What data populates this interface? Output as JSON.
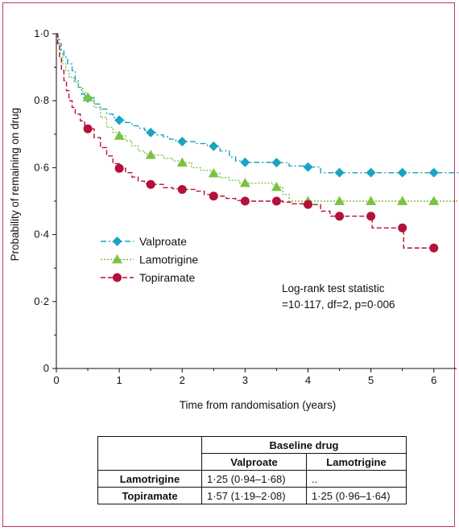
{
  "chart_data": {
    "type": "line",
    "step": true,
    "xlabel": "Time from randomisation (years)",
    "ylabel": "Probability of remaining on drug",
    "xlim": [
      0,
      6.4
    ],
    "ylim": [
      0,
      1.0
    ],
    "x_ticks": [
      0,
      1,
      2,
      3,
      4,
      5,
      6
    ],
    "y_ticks": [
      0,
      0.2,
      0.4,
      0.6,
      0.8,
      1.0
    ],
    "x_tick_labels": [
      "0",
      "1",
      "2",
      "3",
      "4",
      "5",
      "6"
    ],
    "y_tick_labels": [
      "0",
      "0·2",
      "0·4",
      "0·6",
      "0·8",
      "1·0"
    ],
    "grid": false,
    "legend_position": "left-center",
    "series": [
      {
        "name": "Valproate",
        "color": "#1aa3c2",
        "marker": "diamond",
        "dash": "dash-dot",
        "steps": [
          [
            0,
            1.0
          ],
          [
            0.02,
            0.99
          ],
          [
            0.05,
            0.97
          ],
          [
            0.08,
            0.95
          ],
          [
            0.12,
            0.93
          ],
          [
            0.18,
            0.91
          ],
          [
            0.25,
            0.89
          ],
          [
            0.3,
            0.86
          ],
          [
            0.35,
            0.84
          ],
          [
            0.4,
            0.82
          ],
          [
            0.45,
            0.815
          ],
          [
            0.5,
            0.808
          ],
          [
            0.6,
            0.79
          ],
          [
            0.7,
            0.775
          ],
          [
            0.8,
            0.76
          ],
          [
            0.9,
            0.75
          ],
          [
            1.0,
            0.742
          ],
          [
            1.1,
            0.735
          ],
          [
            1.2,
            0.725
          ],
          [
            1.3,
            0.718
          ],
          [
            1.4,
            0.712
          ],
          [
            1.5,
            0.705
          ],
          [
            1.6,
            0.698
          ],
          [
            1.7,
            0.692
          ],
          [
            1.8,
            0.685
          ],
          [
            1.9,
            0.68
          ],
          [
            2.0,
            0.678
          ],
          [
            2.2,
            0.672
          ],
          [
            2.4,
            0.666
          ],
          [
            2.5,
            0.664
          ],
          [
            2.6,
            0.65
          ],
          [
            2.75,
            0.632
          ],
          [
            2.85,
            0.62
          ],
          [
            2.95,
            0.616
          ],
          [
            3.5,
            0.615
          ],
          [
            3.7,
            0.605
          ],
          [
            4.0,
            0.602
          ],
          [
            4.2,
            0.585
          ],
          [
            6.4,
            0.585
          ]
        ],
        "markers": [
          [
            0.5,
            0.808
          ],
          [
            1.0,
            0.742
          ],
          [
            1.5,
            0.705
          ],
          [
            2.0,
            0.678
          ],
          [
            2.5,
            0.664
          ],
          [
            3.0,
            0.616
          ],
          [
            3.5,
            0.615
          ],
          [
            4.0,
            0.602
          ],
          [
            4.5,
            0.585
          ],
          [
            5.0,
            0.585
          ],
          [
            5.5,
            0.585
          ],
          [
            6.0,
            0.585
          ]
        ]
      },
      {
        "name": "Lamotrigine",
        "color": "#7cc242",
        "marker": "triangle",
        "dash": "dotted",
        "steps": [
          [
            0,
            1.0
          ],
          [
            0.03,
            0.97
          ],
          [
            0.06,
            0.94
          ],
          [
            0.1,
            0.91
          ],
          [
            0.15,
            0.89
          ],
          [
            0.2,
            0.87
          ],
          [
            0.28,
            0.855
          ],
          [
            0.35,
            0.84
          ],
          [
            0.42,
            0.825
          ],
          [
            0.5,
            0.81
          ],
          [
            0.6,
            0.78
          ],
          [
            0.7,
            0.75
          ],
          [
            0.8,
            0.72
          ],
          [
            0.9,
            0.705
          ],
          [
            1.0,
            0.695
          ],
          [
            1.1,
            0.68
          ],
          [
            1.2,
            0.665
          ],
          [
            1.3,
            0.65
          ],
          [
            1.4,
            0.642
          ],
          [
            1.5,
            0.638
          ],
          [
            1.7,
            0.628
          ],
          [
            1.85,
            0.62
          ],
          [
            2.0,
            0.615
          ],
          [
            2.15,
            0.6
          ],
          [
            2.3,
            0.592
          ],
          [
            2.45,
            0.586
          ],
          [
            2.5,
            0.583
          ],
          [
            2.6,
            0.57
          ],
          [
            2.75,
            0.562
          ],
          [
            2.9,
            0.555
          ],
          [
            3.0,
            0.554
          ],
          [
            3.3,
            0.554
          ],
          [
            3.45,
            0.545
          ],
          [
            3.5,
            0.542
          ],
          [
            3.6,
            0.52
          ],
          [
            3.7,
            0.5
          ],
          [
            6.4,
            0.5
          ]
        ],
        "markers": [
          [
            0.5,
            0.81
          ],
          [
            1.0,
            0.695
          ],
          [
            1.5,
            0.638
          ],
          [
            2.0,
            0.615
          ],
          [
            2.5,
            0.583
          ],
          [
            3.0,
            0.554
          ],
          [
            3.5,
            0.542
          ],
          [
            4.0,
            0.5
          ],
          [
            4.5,
            0.5
          ],
          [
            5.0,
            0.5
          ],
          [
            5.5,
            0.5
          ],
          [
            6.0,
            0.5
          ]
        ]
      },
      {
        "name": "Topiramate",
        "color": "#b5103c",
        "marker": "circle",
        "dash": "dashed",
        "steps": [
          [
            0,
            1.0
          ],
          [
            0.02,
            0.97
          ],
          [
            0.05,
            0.93
          ],
          [
            0.08,
            0.89
          ],
          [
            0.12,
            0.86
          ],
          [
            0.16,
            0.83
          ],
          [
            0.2,
            0.8
          ],
          [
            0.25,
            0.78
          ],
          [
            0.3,
            0.76
          ],
          [
            0.38,
            0.74
          ],
          [
            0.45,
            0.725
          ],
          [
            0.5,
            0.716
          ],
          [
            0.6,
            0.69
          ],
          [
            0.7,
            0.66
          ],
          [
            0.8,
            0.635
          ],
          [
            0.9,
            0.612
          ],
          [
            1.0,
            0.598
          ],
          [
            1.1,
            0.585
          ],
          [
            1.2,
            0.572
          ],
          [
            1.3,
            0.56
          ],
          [
            1.4,
            0.553
          ],
          [
            1.5,
            0.55
          ],
          [
            1.7,
            0.54
          ],
          [
            1.85,
            0.537
          ],
          [
            2.0,
            0.535
          ],
          [
            2.2,
            0.53
          ],
          [
            2.35,
            0.52
          ],
          [
            2.5,
            0.515
          ],
          [
            2.7,
            0.508
          ],
          [
            2.85,
            0.502
          ],
          [
            3.0,
            0.5
          ],
          [
            3.6,
            0.497
          ],
          [
            3.75,
            0.492
          ],
          [
            4.0,
            0.49
          ],
          [
            4.2,
            0.47
          ],
          [
            4.35,
            0.455
          ],
          [
            4.5,
            0.455
          ],
          [
            5.0,
            0.455
          ],
          [
            5.02,
            0.42
          ],
          [
            5.5,
            0.42
          ],
          [
            5.52,
            0.36
          ],
          [
            6.0,
            0.36
          ]
        ],
        "markers": [
          [
            0.5,
            0.716
          ],
          [
            1.0,
            0.598
          ],
          [
            1.5,
            0.55
          ],
          [
            2.0,
            0.535
          ],
          [
            2.5,
            0.515
          ],
          [
            3.0,
            0.5
          ],
          [
            3.5,
            0.5
          ],
          [
            4.0,
            0.49
          ],
          [
            4.5,
            0.455
          ],
          [
            5.0,
            0.455
          ],
          [
            5.5,
            0.42
          ],
          [
            6.0,
            0.36
          ]
        ]
      }
    ],
    "annotation": [
      "Log-rank test statistic",
      "=10·117, df=2, p=0·006"
    ]
  },
  "table": {
    "caption": "Baseline drug",
    "col_headers": [
      "Valproate",
      "Lamotrigine"
    ],
    "rows": [
      {
        "label": "Lamotrigine",
        "cells": [
          "1·25 (0·94–1·68)",
          ".."
        ]
      },
      {
        "label": "Topiramate",
        "cells": [
          "1·57 (1·19–2·08)",
          "1·25 (0·96–1·64)"
        ]
      }
    ]
  }
}
